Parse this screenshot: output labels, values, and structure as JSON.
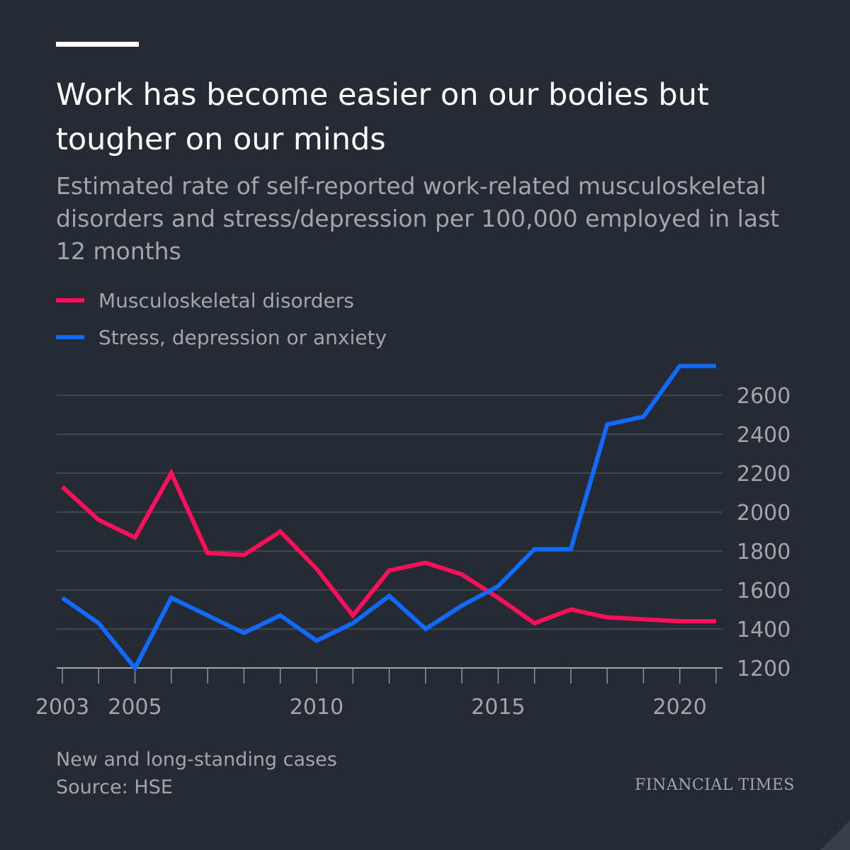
{
  "header": {
    "title": "Work has become easier on our bodies but tougher on our minds",
    "subtitle": "Estimated rate of self-reported work-related musculoskeletal disorders and stress/depression per 100,000 employed in last 12 months"
  },
  "colors": {
    "background": "#262a33",
    "musculoskeletal": "#ff0f5a",
    "stress": "#0f6bff",
    "grid": "#4a4e57",
    "text_muted": "#a2a5ab"
  },
  "legend": [
    {
      "label": "Musculoskeletal disorders",
      "color": "#ff0f5a"
    },
    {
      "label": "Stress, depression or anxiety",
      "color": "#0f6bff"
    }
  ],
  "chart_data": {
    "type": "line",
    "x": [
      2003,
      2004,
      2005,
      2006,
      2007,
      2008,
      2009,
      2010,
      2011,
      2012,
      2013,
      2014,
      2015,
      2016,
      2017,
      2018,
      2019,
      2020,
      2021
    ],
    "series": [
      {
        "name": "Musculoskeletal disorders",
        "values": [
          2130,
          1960,
          1870,
          2200,
          1790,
          1780,
          1900,
          1710,
          1470,
          1700,
          1740,
          1680,
          1560,
          1430,
          1500,
          1460,
          1450,
          1440,
          1440
        ]
      },
      {
        "name": "Stress, depression or anxiety",
        "values": [
          1560,
          1430,
          1200,
          1560,
          1470,
          1380,
          1470,
          1340,
          1430,
          1570,
          1400,
          1520,
          1620,
          1810,
          1810,
          2450,
          2490,
          2750,
          2750
        ]
      }
    ],
    "y_ticks": [
      1200,
      1400,
      1600,
      1800,
      2000,
      2200,
      2400,
      2600
    ],
    "x_tick_labels": [
      "2003",
      "2005",
      "2010",
      "2015",
      "2020"
    ],
    "ylim": [
      1200,
      2750
    ],
    "y_axis_side": "right",
    "grid": true,
    "legend_position": "top-left"
  },
  "footer": {
    "note": "New and long-standing cases",
    "source": "Source: HSE",
    "brand": "FINANCIAL TIMES"
  }
}
